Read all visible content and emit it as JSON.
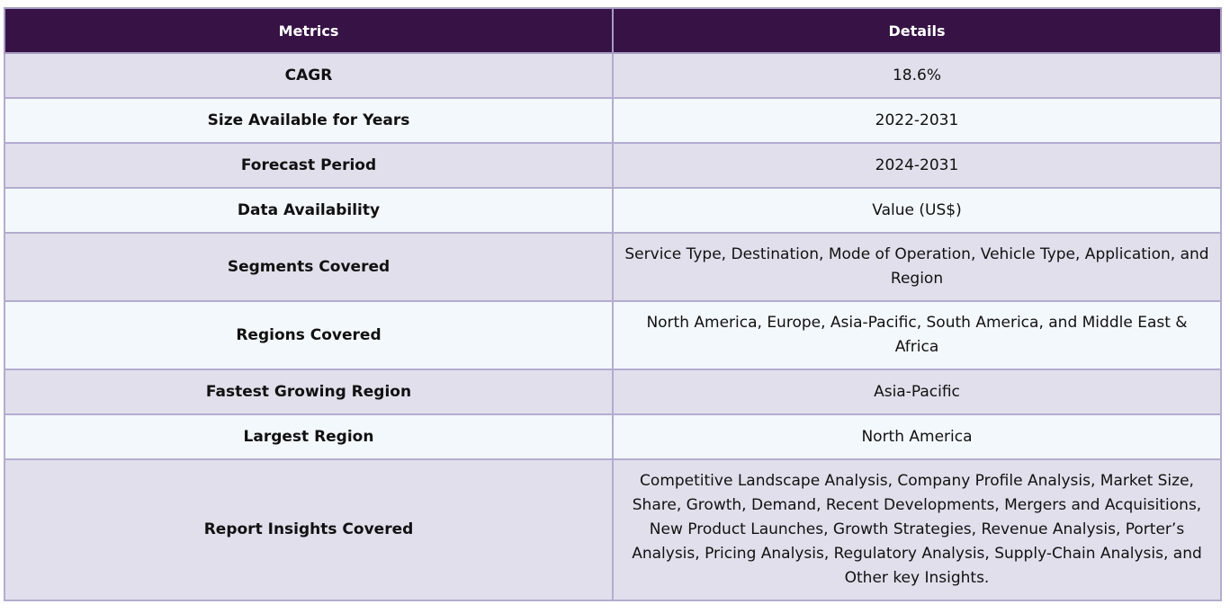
{
  "table": {
    "headers": [
      "Metrics",
      "Details"
    ],
    "rows": [
      {
        "metric": "CAGR",
        "detail": "18.6%"
      },
      {
        "metric": "Size Available for Years",
        "detail": "2022-2031"
      },
      {
        "metric": "Forecast Period",
        "detail": "2024-2031"
      },
      {
        "metric": "Data Availability",
        "detail": "Value (US$)"
      },
      {
        "metric": "Segments Covered",
        "detail": "Service Type, Destination, Mode of Operation, Vehicle Type, Application, and Region"
      },
      {
        "metric": "Regions Covered",
        "detail": "North America, Europe, Asia-Pacific, South America, and Middle East & Africa"
      },
      {
        "metric": "Fastest Growing Region",
        "detail": "Asia-Pacific"
      },
      {
        "metric": "Largest Region",
        "detail": "North America"
      },
      {
        "metric": "Report Insights Covered",
        "detail": "Competitive Landscape Analysis, Company Profile Analysis, Market Size, Share, Growth, Demand, Recent Developments, Mergers and Acquisitions, New Product Launches, Growth Strategies, Revenue Analysis, Porter’s Analysis, Pricing Analysis, Regulatory Analysis, Supply-Chain Analysis, and Other key Insights."
      }
    ]
  },
  "colors": {
    "header_bg": "#361245",
    "row_odd_bg": "#e1dfeb",
    "row_even_bg": "#f3f8fc",
    "border": "#b3acd0"
  }
}
